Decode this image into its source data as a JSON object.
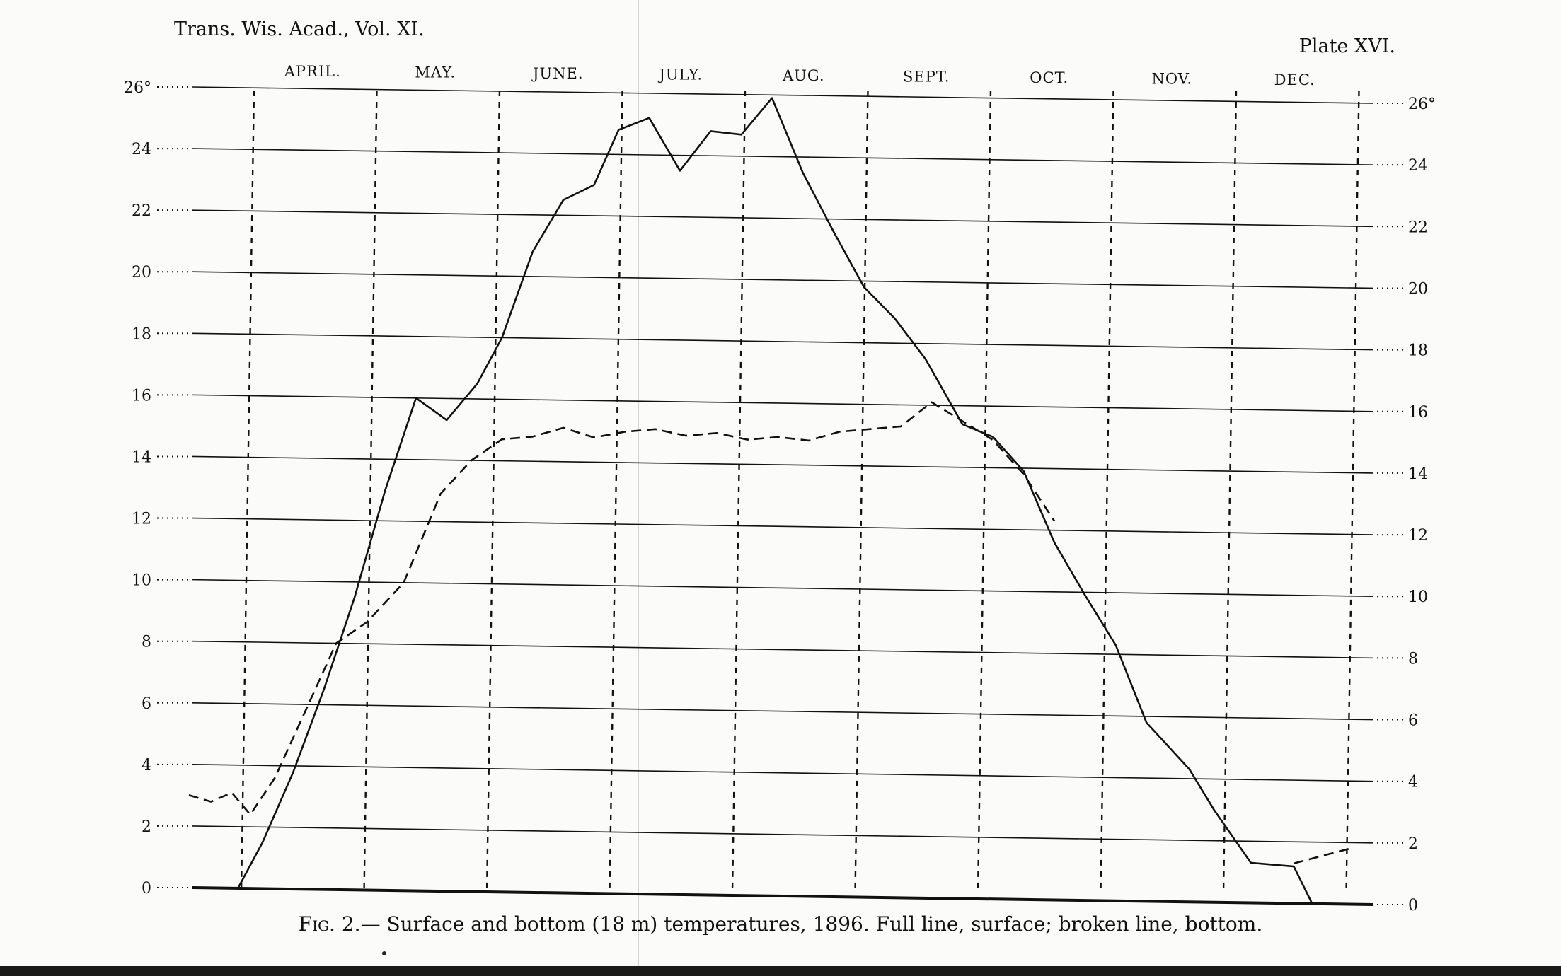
{
  "header": {
    "journal": "Trans. Wis. Acad., Vol. XI.",
    "plate": "Plate XVI."
  },
  "caption": {
    "prefix": "Fig. 2.",
    "text": "— Surface and bottom (18 m) temperatures, 1896. Full line, surface; broken line, bottom."
  },
  "chart_data": {
    "type": "line",
    "title": "Fig. 2.— Surface and bottom (18 m) temperatures, 1896. Full line, surface; broken line, bottom.",
    "xlabel": "",
    "ylabel": "",
    "months": [
      "April.",
      "May.",
      "June.",
      "July.",
      "Aug.",
      "Sept.",
      "Oct.",
      "Nov.",
      "Dec."
    ],
    "y_tick_labels": [
      "0",
      "2",
      "4",
      "6",
      "8",
      "10",
      "12",
      "14",
      "16",
      "18",
      "20",
      "22",
      "24",
      "26°"
    ],
    "y_tick_values": [
      0,
      2,
      4,
      6,
      8,
      10,
      12,
      14,
      16,
      18,
      20,
      22,
      24,
      26
    ],
    "ylim": [
      0,
      26
    ],
    "x_unit": "months since April 1",
    "xlim": [
      -0.45,
      9.0
    ],
    "grid": true,
    "colors": {
      "ink": "#111111",
      "paper": "#fbfbf9"
    },
    "series": [
      {
        "name": "surface",
        "style": "solid",
        "points": [
          [
            -0.05,
            0
          ],
          [
            0.15,
            1.5
          ],
          [
            0.4,
            3.8
          ],
          [
            0.65,
            6.5
          ],
          [
            0.9,
            9.5
          ],
          [
            1.15,
            13.0
          ],
          [
            1.4,
            16.0
          ],
          [
            1.65,
            15.3
          ],
          [
            1.9,
            16.5
          ],
          [
            2.1,
            18.0
          ],
          [
            2.35,
            20.8
          ],
          [
            2.6,
            22.5
          ],
          [
            2.85,
            23.0
          ],
          [
            3.05,
            24.8
          ],
          [
            3.3,
            25.2
          ],
          [
            3.55,
            23.5
          ],
          [
            3.8,
            24.8
          ],
          [
            4.05,
            24.7
          ],
          [
            4.3,
            25.9
          ],
          [
            4.55,
            23.5
          ],
          [
            4.8,
            21.6
          ],
          [
            5.05,
            19.8
          ],
          [
            5.3,
            18.8
          ],
          [
            5.55,
            17.5
          ],
          [
            5.85,
            15.4
          ],
          [
            6.1,
            15.0
          ],
          [
            6.35,
            13.9
          ],
          [
            6.6,
            11.6
          ],
          [
            6.85,
            9.9
          ],
          [
            7.1,
            8.3
          ],
          [
            7.35,
            5.8
          ],
          [
            7.7,
            4.3
          ],
          [
            7.9,
            3.0
          ],
          [
            8.2,
            1.3
          ],
          [
            8.55,
            1.2
          ],
          [
            8.7,
            0
          ]
        ]
      },
      {
        "name": "bottom",
        "style": "dashed",
        "points": [
          [
            -0.45,
            3.0
          ],
          [
            -0.27,
            2.8
          ],
          [
            -0.1,
            3.1
          ],
          [
            0.05,
            2.4
          ],
          [
            0.25,
            3.6
          ],
          [
            0.5,
            5.8
          ],
          [
            0.75,
            8.0
          ],
          [
            1.0,
            8.7
          ],
          [
            1.3,
            10.0
          ],
          [
            1.6,
            12.9
          ],
          [
            1.85,
            14.0
          ],
          [
            2.1,
            14.7
          ],
          [
            2.35,
            14.8
          ],
          [
            2.6,
            15.1
          ],
          [
            2.85,
            14.8
          ],
          [
            3.1,
            15.0
          ],
          [
            3.35,
            15.1
          ],
          [
            3.6,
            14.9
          ],
          [
            3.85,
            15.0
          ],
          [
            4.1,
            14.8
          ],
          [
            4.35,
            14.9
          ],
          [
            4.6,
            14.8
          ],
          [
            4.85,
            15.1
          ],
          [
            5.1,
            15.2
          ],
          [
            5.35,
            15.3
          ],
          [
            5.6,
            16.1
          ],
          [
            5.85,
            15.5
          ],
          [
            6.1,
            14.9
          ],
          [
            6.35,
            13.8
          ],
          [
            6.6,
            12.3
          ]
        ]
      },
      {
        "name": "bottom (Dec.)",
        "style": "dashed",
        "points": [
          [
            8.55,
            1.3
          ],
          [
            9.0,
            1.8
          ]
        ]
      }
    ]
  }
}
